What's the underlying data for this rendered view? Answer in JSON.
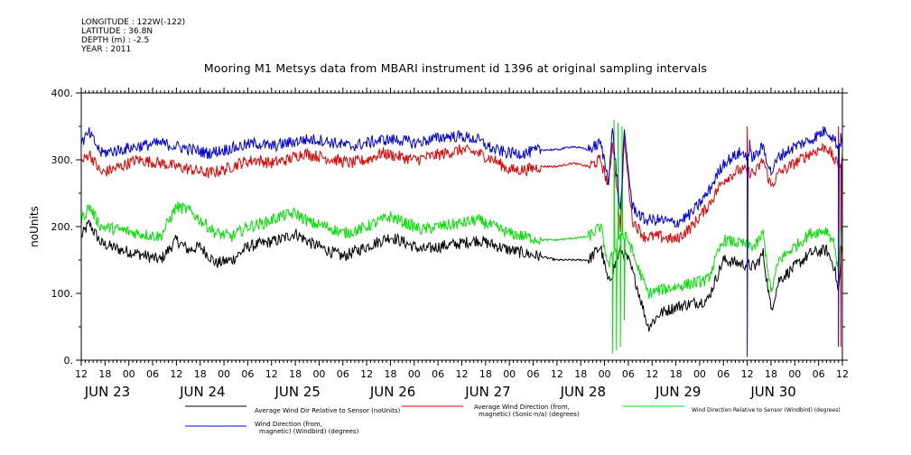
{
  "header": {
    "longitude": "LONGITUDE : 122W(-122)",
    "latitude": "LATITUDE : 36.8N",
    "depth": "DEPTH (m) : -2.5",
    "year": "YEAR : 2011"
  },
  "chart_data": {
    "type": "line",
    "title": "Mooring M1 Metsys data from MBARI instrument id 1396 at original sampling intervals",
    "ylabel": "noUnits",
    "xlabel": "",
    "ylim": [
      0,
      400
    ],
    "yticks": [
      "0.",
      "100.",
      "200.",
      "300.",
      "400."
    ],
    "xlim_hours": [
      0,
      192
    ],
    "hour_ticks": [
      "12",
      "18",
      "00",
      "06",
      "12",
      "18",
      "00",
      "06",
      "12",
      "18",
      "00",
      "06",
      "12",
      "18",
      "00",
      "06",
      "12",
      "18",
      "00",
      "06",
      "12",
      "18",
      "00",
      "06",
      "12",
      "18",
      "00",
      "06",
      "12",
      "18",
      "00",
      "06",
      "12"
    ],
    "day_labels": [
      "JUN 23",
      "JUN 24",
      "JUN 25",
      "JUN 26",
      "JUN 27",
      "JUN 28",
      "JUN 29",
      "JUN 30"
    ],
    "series": [
      {
        "name": "Average Wind Dir Relative to Sensor (noUnits)",
        "color": "#000000",
        "keypoints": [
          [
            0,
            185
          ],
          [
            2,
            205
          ],
          [
            5,
            175
          ],
          [
            10,
            165
          ],
          [
            14,
            160
          ],
          [
            20,
            150
          ],
          [
            24,
            180
          ],
          [
            27,
            165
          ],
          [
            30,
            170
          ],
          [
            34,
            145
          ],
          [
            38,
            150
          ],
          [
            42,
            170
          ],
          [
            46,
            175
          ],
          [
            50,
            180
          ],
          [
            54,
            190
          ],
          [
            58,
            175
          ],
          [
            62,
            165
          ],
          [
            66,
            155
          ],
          [
            70,
            165
          ],
          [
            74,
            175
          ],
          [
            78,
            185
          ],
          [
            82,
            175
          ],
          [
            86,
            165
          ],
          [
            90,
            170
          ],
          [
            96,
            175
          ],
          [
            100,
            180
          ],
          [
            108,
            165
          ],
          [
            112,
            160
          ],
          [
            116,
            155
          ],
          [
            120,
            150
          ],
          [
            128,
            150
          ],
          [
            131,
            170
          ],
          [
            133,
            115
          ],
          [
            136,
            165
          ],
          [
            138,
            150
          ],
          [
            140,
            115
          ],
          [
            143,
            50
          ],
          [
            146,
            70
          ],
          [
            150,
            80
          ],
          [
            154,
            85
          ],
          [
            158,
            90
          ],
          [
            162,
            150
          ],
          [
            166,
            145
          ],
          [
            170,
            140
          ],
          [
            172,
            160
          ],
          [
            174,
            75
          ],
          [
            176,
            120
          ],
          [
            180,
            140
          ],
          [
            184,
            160
          ],
          [
            188,
            165
          ],
          [
            190,
            140
          ],
          [
            191,
            100
          ],
          [
            192,
            180
          ]
        ],
        "spikes": []
      },
      {
        "name": "Average Wind Direction (from, magnetic) (Sonic-n/a) (degrees)",
        "color": "#e00000",
        "keypoints": [
          [
            0,
            295
          ],
          [
            2,
            310
          ],
          [
            5,
            280
          ],
          [
            10,
            290
          ],
          [
            14,
            300
          ],
          [
            20,
            295
          ],
          [
            24,
            290
          ],
          [
            28,
            285
          ],
          [
            32,
            280
          ],
          [
            36,
            285
          ],
          [
            40,
            295
          ],
          [
            44,
            300
          ],
          [
            48,
            295
          ],
          [
            52,
            300
          ],
          [
            56,
            310
          ],
          [
            60,
            305
          ],
          [
            64,
            300
          ],
          [
            68,
            295
          ],
          [
            72,
            300
          ],
          [
            76,
            310
          ],
          [
            80,
            305
          ],
          [
            84,
            300
          ],
          [
            88,
            305
          ],
          [
            92,
            310
          ],
          [
            96,
            315
          ],
          [
            100,
            310
          ],
          [
            104,
            300
          ],
          [
            108,
            285
          ],
          [
            112,
            285
          ],
          [
            116,
            290
          ],
          [
            120,
            290
          ],
          [
            124,
            295
          ],
          [
            128,
            290
          ],
          [
            131,
            300
          ],
          [
            133,
            260
          ],
          [
            134,
            330
          ],
          [
            136,
            200
          ],
          [
            137,
            330
          ],
          [
            139,
            210
          ],
          [
            142,
            185
          ],
          [
            146,
            185
          ],
          [
            150,
            180
          ],
          [
            154,
            200
          ],
          [
            158,
            230
          ],
          [
            162,
            270
          ],
          [
            166,
            285
          ],
          [
            170,
            280
          ],
          [
            172,
            300
          ],
          [
            174,
            260
          ],
          [
            176,
            280
          ],
          [
            180,
            295
          ],
          [
            184,
            310
          ],
          [
            188,
            320
          ],
          [
            190,
            300
          ],
          [
            191,
            290
          ],
          [
            192,
            300
          ]
        ],
        "spikes": [
          [
            168,
            350
          ],
          [
            191,
            350
          ],
          [
            191.5,
            20
          ]
        ]
      },
      {
        "name": "Wind Direction Relative to Sensor (Windbird) (degrees)",
        "color": "#00e000",
        "keypoints": [
          [
            0,
            210
          ],
          [
            2,
            230
          ],
          [
            5,
            200
          ],
          [
            10,
            195
          ],
          [
            14,
            190
          ],
          [
            20,
            185
          ],
          [
            24,
            230
          ],
          [
            27,
            225
          ],
          [
            30,
            210
          ],
          [
            34,
            190
          ],
          [
            38,
            185
          ],
          [
            42,
            200
          ],
          [
            46,
            205
          ],
          [
            50,
            215
          ],
          [
            54,
            220
          ],
          [
            58,
            205
          ],
          [
            62,
            200
          ],
          [
            66,
            190
          ],
          [
            70,
            195
          ],
          [
            74,
            205
          ],
          [
            78,
            215
          ],
          [
            82,
            205
          ],
          [
            86,
            195
          ],
          [
            90,
            200
          ],
          [
            96,
            205
          ],
          [
            100,
            210
          ],
          [
            108,
            190
          ],
          [
            112,
            185
          ],
          [
            116,
            180
          ],
          [
            120,
            180
          ],
          [
            128,
            185
          ],
          [
            131,
            200
          ],
          [
            133,
            140
          ],
          [
            136,
            190
          ],
          [
            138,
            180
          ],
          [
            140,
            145
          ],
          [
            143,
            100
          ],
          [
            146,
            105
          ],
          [
            150,
            110
          ],
          [
            154,
            115
          ],
          [
            158,
            120
          ],
          [
            162,
            180
          ],
          [
            166,
            175
          ],
          [
            170,
            170
          ],
          [
            172,
            190
          ],
          [
            174,
            100
          ],
          [
            176,
            150
          ],
          [
            180,
            170
          ],
          [
            184,
            190
          ],
          [
            188,
            195
          ],
          [
            190,
            175
          ],
          [
            191,
            130
          ],
          [
            192,
            210
          ]
        ],
        "spikes": [
          [
            134,
            10
          ],
          [
            134.5,
            360
          ],
          [
            135,
            15
          ],
          [
            135.5,
            355
          ],
          [
            136,
            20
          ],
          [
            136.5,
            350
          ],
          [
            137,
            60
          ]
        ]
      },
      {
        "name": "Wind Direction (from, magnetic) (Windbird) (degrees)",
        "color": "#0000e0",
        "keypoints": [
          [
            0,
            325
          ],
          [
            2,
            340
          ],
          [
            5,
            310
          ],
          [
            10,
            315
          ],
          [
            14,
            320
          ],
          [
            20,
            325
          ],
          [
            24,
            320
          ],
          [
            28,
            315
          ],
          [
            32,
            310
          ],
          [
            36,
            315
          ],
          [
            40,
            320
          ],
          [
            44,
            325
          ],
          [
            48,
            320
          ],
          [
            52,
            325
          ],
          [
            56,
            330
          ],
          [
            60,
            330
          ],
          [
            64,
            325
          ],
          [
            68,
            320
          ],
          [
            72,
            325
          ],
          [
            76,
            330
          ],
          [
            80,
            330
          ],
          [
            84,
            325
          ],
          [
            88,
            330
          ],
          [
            92,
            335
          ],
          [
            96,
            335
          ],
          [
            100,
            330
          ],
          [
            104,
            315
          ],
          [
            108,
            310
          ],
          [
            112,
            310
          ],
          [
            116,
            315
          ],
          [
            120,
            315
          ],
          [
            124,
            320
          ],
          [
            128,
            315
          ],
          [
            131,
            325
          ],
          [
            133,
            270
          ],
          [
            134,
            345
          ],
          [
            136,
            220
          ],
          [
            137,
            340
          ],
          [
            139,
            230
          ],
          [
            142,
            210
          ],
          [
            146,
            210
          ],
          [
            150,
            205
          ],
          [
            154,
            220
          ],
          [
            158,
            250
          ],
          [
            162,
            295
          ],
          [
            166,
            310
          ],
          [
            170,
            305
          ],
          [
            172,
            320
          ],
          [
            174,
            280
          ],
          [
            176,
            305
          ],
          [
            180,
            320
          ],
          [
            184,
            330
          ],
          [
            188,
            345
          ],
          [
            190,
            330
          ],
          [
            191,
            320
          ],
          [
            192,
            330
          ]
        ],
        "spikes": [
          [
            168,
            5
          ],
          [
            168.5,
            330
          ],
          [
            191,
            20
          ],
          [
            191.5,
            340
          ]
        ]
      }
    ]
  },
  "legend": {
    "black_label": "Average Wind Dir Relative to Sensor (noUnits)",
    "red_label_1": "Average Wind Direction (from,",
    "red_label_2": "magnetic) (Sonic-n/a) (degrees)",
    "green_label": "Wind Direction Relative to Sensor (Windbird) (degrees)",
    "blue_label_1": "Wind Direction (from,",
    "blue_label_2": "magnetic) (Windbird) (degrees)"
  }
}
